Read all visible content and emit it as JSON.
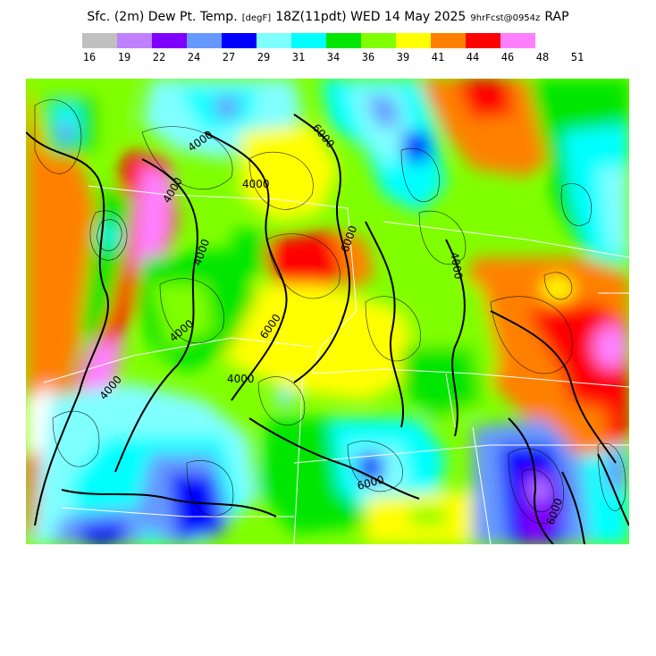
{
  "header": {
    "field": "Sfc. (2m) Dew Pt. Temp.",
    "units": "[degF]",
    "valid": "18Z(11pdt) WED 14 May 2025",
    "forecast": "9hrFcst@0954z",
    "model": "RAP"
  },
  "legend": {
    "colors": [
      "#c0c0c0",
      "#c080ff",
      "#8000ff",
      "#6699ff",
      "#0000ff",
      "#80ffff",
      "#00ffff",
      "#00e600",
      "#80ff00",
      "#ffff00",
      "#ff8000",
      "#ff0000",
      "#ff80ff"
    ],
    "ticks": [
      "16",
      "19",
      "22",
      "24",
      "27",
      "29",
      "31",
      "34",
      "36",
      "39",
      "41",
      "44",
      "46",
      "48",
      "51"
    ]
  },
  "map": {
    "contour_labels": [
      {
        "id": "c1",
        "text": "4000"
      },
      {
        "id": "c2",
        "text": "6000"
      },
      {
        "id": "c3",
        "text": "4000"
      },
      {
        "id": "c4",
        "text": "4000"
      },
      {
        "id": "c5",
        "text": "4000"
      },
      {
        "id": "c6",
        "text": "6000"
      },
      {
        "id": "c7",
        "text": "4000"
      },
      {
        "id": "c8",
        "text": "4000"
      },
      {
        "id": "c9",
        "text": "4000"
      },
      {
        "id": "c10",
        "text": "6000"
      },
      {
        "id": "c11",
        "text": "4000"
      },
      {
        "id": "c12",
        "text": "6000"
      },
      {
        "id": "c13",
        "text": "6000"
      }
    ]
  }
}
